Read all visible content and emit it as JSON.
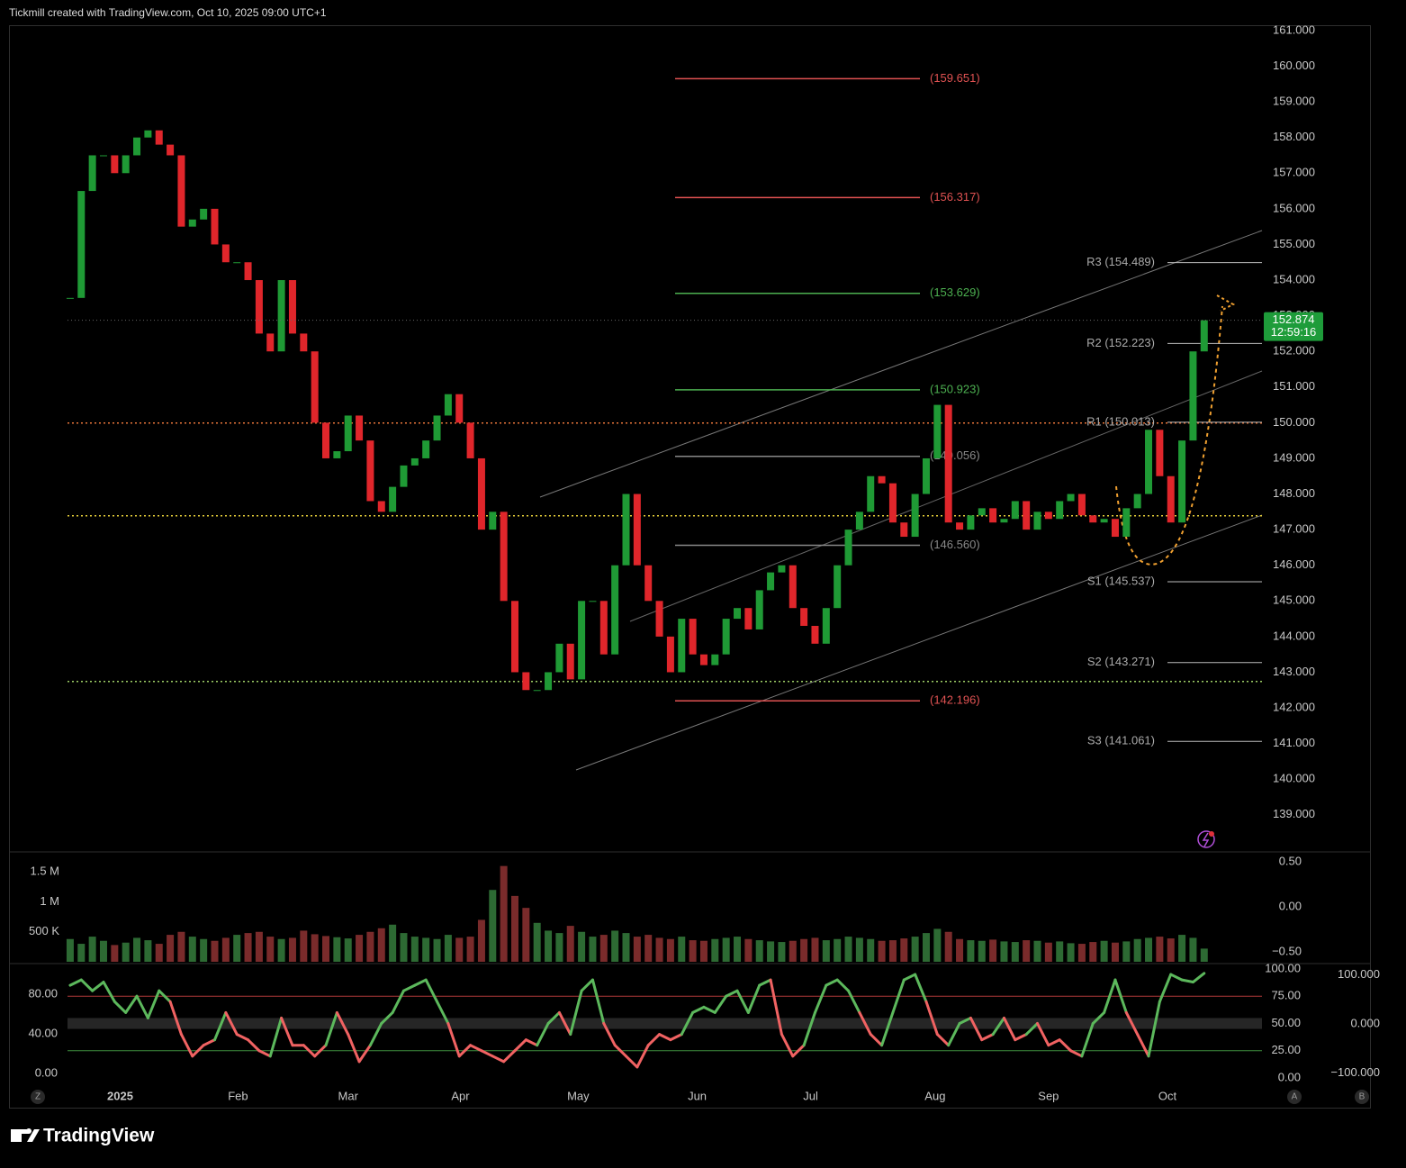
{
  "header": {
    "title": "Tickmill created with TradingView.com, Oct 10, 2025 09:00 UTC+1"
  },
  "chart_data": [
    {
      "type": "candlestick",
      "values": [
        153.5,
        156.5,
        157.5,
        157.5,
        157,
        157.5,
        158,
        158.2,
        157.8,
        157.5,
        155.5,
        155.7,
        156,
        155,
        154.5,
        154.5,
        154,
        152.5,
        152,
        154,
        152.5,
        152,
        150,
        149,
        149.2,
        150.2,
        149.5,
        147.8,
        147.5,
        148.2,
        148.8,
        149,
        149.5,
        150.2,
        150.8,
        150,
        149,
        147,
        147.5,
        145,
        143,
        142.5,
        142.5,
        143,
        143.8,
        142.8,
        145,
        145,
        143.5,
        146,
        148,
        146,
        145,
        144,
        143,
        144.5,
        143.5,
        143.2,
        143.5,
        144.5,
        144.8,
        144.2,
        145.3,
        145.8,
        146,
        144.8,
        144.3,
        143.8,
        144.8,
        146,
        147,
        147.5,
        148.5,
        148.3,
        147.2,
        146.8,
        148,
        149,
        150.5,
        147.2,
        147,
        147.4,
        147.6,
        147.2,
        147.3,
        147.8,
        147,
        147.5,
        147.3,
        147.8,
        148,
        147.4,
        147.2,
        147.3,
        146.8,
        147.6,
        148,
        149.8,
        148.5,
        147.2,
        149.5,
        152,
        152.874
      ],
      "colors": {
        "up": "#1f9a35",
        "down": "#e0262b"
      },
      "xlim": [
        -5.5,
        107.2
      ],
      "xticks": [
        {
          "value": 4.5,
          "label": "2025"
        },
        {
          "value": 15.1,
          "label": "Feb"
        },
        {
          "value": 25.0,
          "label": "Mar"
        },
        {
          "value": 35.1,
          "label": "Apr"
        },
        {
          "value": 45.7,
          "label": "May"
        },
        {
          "value": 56.4,
          "label": "Jun"
        },
        {
          "value": 66.6,
          "label": "Jul"
        },
        {
          "value": 77.8,
          "label": "Aug"
        },
        {
          "value": 88.0,
          "label": "Sep"
        },
        {
          "value": 98.7,
          "label": "Oct"
        }
      ],
      "ylim": [
        138.01,
        161.15
      ],
      "yticks": [
        {
          "value": 139,
          "label": "139.000"
        },
        {
          "value": 140,
          "label": "140.000"
        },
        {
          "value": 141,
          "label": "141.000"
        },
        {
          "value": 142,
          "label": "142.000"
        },
        {
          "value": 143,
          "label": "143.000"
        },
        {
          "value": 144,
          "label": "144.000"
        },
        {
          "value": 145,
          "label": "145.000"
        },
        {
          "value": 146,
          "label": "146.000"
        },
        {
          "value": 147,
          "label": "147.000"
        },
        {
          "value": 148,
          "label": "148.000"
        },
        {
          "value": 149,
          "label": "149.000"
        },
        {
          "value": 150,
          "label": "150.000"
        },
        {
          "value": 151,
          "label": "151.000"
        },
        {
          "value": 152,
          "label": "152.000"
        },
        {
          "value": 153,
          "label": "153.000"
        },
        {
          "value": 154,
          "label": "154.000"
        },
        {
          "value": 155,
          "label": "155.000"
        },
        {
          "value": 156,
          "label": "156.000"
        },
        {
          "value": 157,
          "label": "157.000"
        },
        {
          "value": 158,
          "label": "158.000"
        },
        {
          "value": 159,
          "label": "159.000"
        },
        {
          "value": 160,
          "label": "160.000"
        },
        {
          "value": 161,
          "label": "161.000"
        }
      ],
      "levels": [
        {
          "value": 159.651,
          "label": "(159.651)",
          "color": "#e05252"
        },
        {
          "value": 156.317,
          "label": "(156.317)",
          "color": "#e05252"
        },
        {
          "value": 153.629,
          "label": "(153.629)",
          "color": "#4caf50"
        },
        {
          "value": 150.923,
          "label": "(150.923)",
          "color": "#4caf50"
        },
        {
          "value": 149.056,
          "label": "(149.056)",
          "color": "#888888"
        },
        {
          "value": 146.56,
          "label": "(146.560)",
          "color": "#888888"
        },
        {
          "value": 142.196,
          "label": "(142.196)",
          "color": "#e05252"
        }
      ],
      "pivots": [
        {
          "value": 154.489,
          "label": "R3 (154.489)"
        },
        {
          "value": 152.223,
          "label": "R2 (152.223)"
        },
        {
          "value": 150.013,
          "label": "R1 (150.013)"
        },
        {
          "value": 145.537,
          "label": "S1 (145.537)"
        },
        {
          "value": 143.271,
          "label": "S2 (143.271)"
        },
        {
          "value": 141.061,
          "label": "S3 (141.061)"
        }
      ],
      "hlines": [
        {
          "value": 149.99,
          "color": "#e8753a"
        },
        {
          "value": 147.39,
          "color": "#e8d13a"
        },
        {
          "value": 142.74,
          "color": "#9ccc65"
        }
      ],
      "last_price": {
        "value": 152.874,
        "countdown": "12:59:16",
        "color": "#1e9c3a"
      }
    },
    {
      "type": "bar",
      "values": [
        380000,
        300000,
        420000,
        350000,
        280000,
        320000,
        400000,
        360000,
        300000,
        450000,
        500000,
        420000,
        380000,
        350000,
        400000,
        450000,
        480000,
        500000,
        420000,
        380000,
        400000,
        520000,
        460000,
        430000,
        410000,
        390000,
        450000,
        500000,
        560000,
        620000,
        480000,
        420000,
        400000,
        380000,
        450000,
        400000,
        420000,
        700000,
        1200000,
        1600000,
        1100000,
        900000,
        650000,
        520000,
        480000,
        600000,
        500000,
        420000,
        450000,
        520000,
        480000,
        420000,
        450000,
        400000,
        380000,
        420000,
        360000,
        350000,
        380000,
        400000,
        420000,
        380000,
        360000,
        340000,
        330000,
        350000,
        380000,
        400000,
        360000,
        380000,
        420000,
        400000,
        380000,
        350000,
        360000,
        390000,
        420000,
        480000,
        550000,
        500000,
        380000,
        360000,
        350000,
        370000,
        340000,
        330000,
        360000,
        350000,
        320000,
        340000,
        310000,
        300000,
        330000,
        350000,
        320000,
        340000,
        380000,
        400000,
        420000,
        390000,
        450000,
        400000,
        220000
      ],
      "colors": {
        "up": "#2d6a33",
        "down": "#7a2b2b"
      },
      "ylim": [
        0,
        1775000
      ],
      "yticks": [
        {
          "value": 500000,
          "label": "500 K"
        },
        {
          "value": 1000000,
          "label": "1 M"
        },
        {
          "value": 1500000,
          "label": "1.5 M"
        }
      ],
      "y2lim": [
        -0.61,
        0.57
      ],
      "y2ticks": [
        {
          "value": -0.5,
          "label": "−0.50"
        },
        {
          "value": 0,
          "label": "0.00"
        },
        {
          "value": 0.5,
          "label": "0.50"
        }
      ]
    },
    {
      "type": "line",
      "values": [
        85,
        90,
        80,
        88,
        70,
        60,
        75,
        55,
        80,
        70,
        40,
        20,
        30,
        35,
        60,
        40,
        35,
        25,
        20,
        55,
        30,
        30,
        20,
        30,
        60,
        40,
        15,
        30,
        50,
        60,
        80,
        85,
        90,
        70,
        50,
        20,
        30,
        25,
        20,
        15,
        25,
        35,
        30,
        50,
        60,
        40,
        80,
        90,
        50,
        30,
        20,
        10,
        30,
        40,
        35,
        40,
        60,
        65,
        60,
        75,
        80,
        60,
        85,
        90,
        40,
        20,
        30,
        60,
        85,
        90,
        80,
        60,
        40,
        30,
        60,
        90,
        95,
        70,
        40,
        30,
        50,
        55,
        35,
        40,
        55,
        35,
        40,
        50,
        30,
        35,
        25,
        20,
        50,
        60,
        90,
        60,
        40,
        20,
        70,
        95,
        90,
        88,
        96
      ],
      "axis": "y2",
      "colors": {
        "up": "#5cb85c",
        "down": "#f06262"
      },
      "ylim": [
        -11.8,
        109.1
      ],
      "yticks": [
        {
          "value": 0,
          "label": "0.00"
        },
        {
          "value": 40,
          "label": "40.00"
        },
        {
          "value": 80,
          "label": "80.00"
        }
      ],
      "y2lim": [
        -6.6,
        103.3
      ],
      "y2ticks": [
        {
          "value": 0,
          "label": "0.00"
        },
        {
          "value": 25,
          "label": "25.00"
        },
        {
          "value": 50,
          "label": "50.00"
        },
        {
          "value": 75,
          "label": "75.00"
        },
        {
          "value": 100,
          "label": "100.00"
        }
      ],
      "y3lim": [
        -124.8,
        119
      ],
      "y3ticks": [
        {
          "value": -100,
          "label": "−100.000"
        },
        {
          "value": 0,
          "label": "0.000"
        },
        {
          "value": 100,
          "label": "100.000"
        }
      ],
      "bands": [
        {
          "value": 75,
          "color": "#b23b3b"
        },
        {
          "value": 25,
          "color": "#3f8f3f"
        }
      ],
      "midband": [
        45,
        55
      ]
    }
  ],
  "ui": {
    "buttons": [
      "Z",
      "A",
      "B"
    ],
    "logo": "TradingView"
  }
}
